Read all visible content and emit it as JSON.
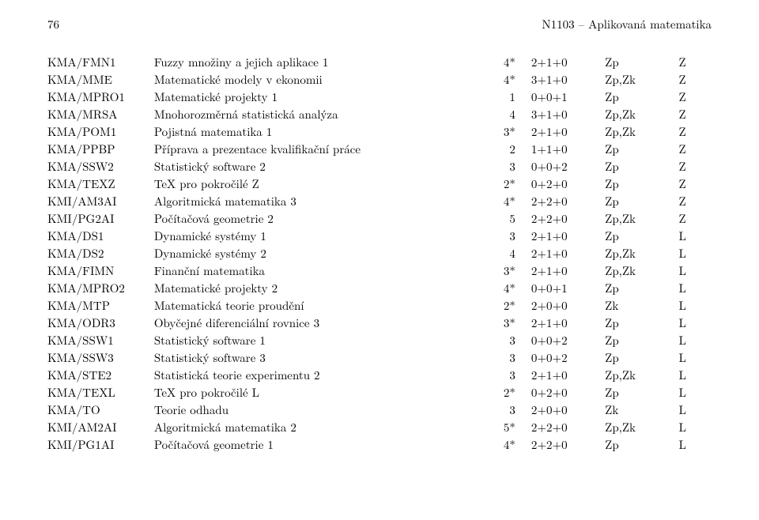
{
  "header": {
    "page_number": "76",
    "title": "N1103 – Aplikovaná matematika"
  },
  "rows": [
    {
      "code": "KMA/FMN1",
      "name": "Fuzzy množiny a jejich aplikace 1",
      "credit": "4*",
      "hours": "2+1+0",
      "exam": "Zp",
      "sem": "Z"
    },
    {
      "code": "KMA/MME",
      "name": "Matematické modely v ekonomii",
      "credit": "4*",
      "hours": "3+1+0",
      "exam": "Zp,Zk",
      "sem": "Z"
    },
    {
      "code": "KMA/MPRO1",
      "name": "Matematické projekty 1",
      "credit": "1",
      "hours": "0+0+1",
      "exam": "Zp",
      "sem": "Z"
    },
    {
      "code": "KMA/MRSA",
      "name": "Mnohorozměrná statistická analýza",
      "credit": "4",
      "hours": "3+1+0",
      "exam": "Zp,Zk",
      "sem": "Z"
    },
    {
      "code": "KMA/POM1",
      "name": "Pojistná matematika 1",
      "credit": "3*",
      "hours": "2+1+0",
      "exam": "Zp,Zk",
      "sem": "Z"
    },
    {
      "code": "KMA/PPBP",
      "name": "Příprava a prezentace kvalifikační práce",
      "credit": "2",
      "hours": "1+1+0",
      "exam": "Zp",
      "sem": "Z"
    },
    {
      "code": "KMA/SSW2",
      "name": "Statistický software 2",
      "credit": "3",
      "hours": "0+0+2",
      "exam": "Zp",
      "sem": "Z"
    },
    {
      "code": "KMA/TEXZ",
      "name": "TeX pro pokročilé Z",
      "credit": "2*",
      "hours": "0+2+0",
      "exam": "Zp",
      "sem": "Z"
    },
    {
      "code": "KMI/AM3AI",
      "name": "Algoritmická matematika 3",
      "credit": "4*",
      "hours": "2+2+0",
      "exam": "Zp",
      "sem": "Z"
    },
    {
      "code": "KMI/PG2AI",
      "name": "Počítačová geometrie 2",
      "credit": "5",
      "hours": "2+2+0",
      "exam": "Zp,Zk",
      "sem": "Z"
    },
    {
      "code": "KMA/DS1",
      "name": "Dynamické systémy 1",
      "credit": "3",
      "hours": "2+1+0",
      "exam": "Zp",
      "sem": "L"
    },
    {
      "code": "KMA/DS2",
      "name": "Dynamické systémy 2",
      "credit": "4",
      "hours": "2+1+0",
      "exam": "Zp,Zk",
      "sem": "L"
    },
    {
      "code": "KMA/FIMN",
      "name": "Finanční matematika",
      "credit": "3*",
      "hours": "2+1+0",
      "exam": "Zp,Zk",
      "sem": "L"
    },
    {
      "code": "KMA/MPRO2",
      "name": "Matematické projekty 2",
      "credit": "4*",
      "hours": "0+0+1",
      "exam": "Zp",
      "sem": "L"
    },
    {
      "code": "KMA/MTP",
      "name": "Matematická teorie proudění",
      "credit": "2*",
      "hours": "2+0+0",
      "exam": "Zk",
      "sem": "L"
    },
    {
      "code": "KMA/ODR3",
      "name": "Obyčejné diferenciální rovnice 3",
      "credit": "3*",
      "hours": "2+1+0",
      "exam": "Zp",
      "sem": "L"
    },
    {
      "code": "KMA/SSW1",
      "name": "Statistický software 1",
      "credit": "3",
      "hours": "0+0+2",
      "exam": "Zp",
      "sem": "L"
    },
    {
      "code": "KMA/SSW3",
      "name": "Statistický software 3",
      "credit": "3",
      "hours": "0+0+2",
      "exam": "Zp",
      "sem": "L"
    },
    {
      "code": "KMA/STE2",
      "name": "Statistická teorie experimentu 2",
      "credit": "3",
      "hours": "2+1+0",
      "exam": "Zp,Zk",
      "sem": "L"
    },
    {
      "code": "KMA/TEXL",
      "name": "TeX pro pokročilé L",
      "credit": "2*",
      "hours": "0+2+0",
      "exam": "Zp",
      "sem": "L"
    },
    {
      "code": "KMA/TO",
      "name": "Teorie odhadu",
      "credit": "3",
      "hours": "2+0+0",
      "exam": "Zk",
      "sem": "L"
    },
    {
      "code": "KMI/AM2AI",
      "name": "Algoritmická matematika 2",
      "credit": "5*",
      "hours": "2+2+0",
      "exam": "Zp,Zk",
      "sem": "L"
    },
    {
      "code": "KMI/PG1AI",
      "name": "Počítačová geometrie 1",
      "credit": "4*",
      "hours": "2+2+0",
      "exam": "Zp",
      "sem": "L"
    }
  ]
}
